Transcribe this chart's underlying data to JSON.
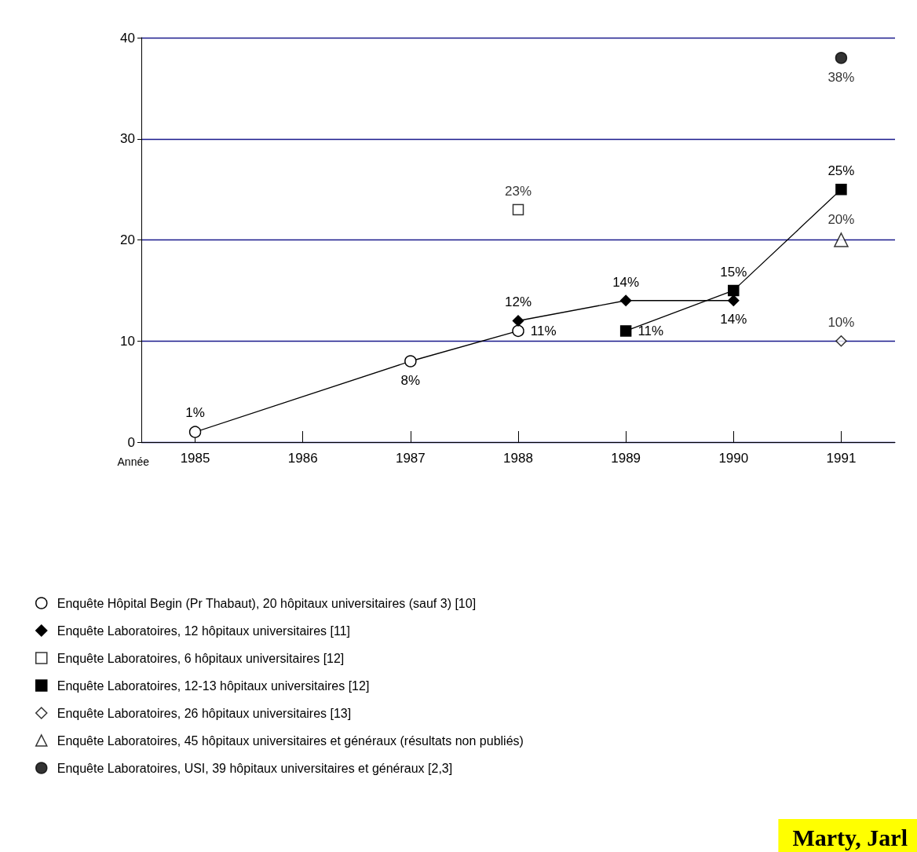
{
  "chart_data": {
    "type": "line",
    "xlabel": "Année",
    "categories": [
      "1985",
      "1986",
      "1987",
      "1988",
      "1989",
      "1990",
      "1991"
    ],
    "ylim": [
      0,
      40
    ],
    "yticks": [
      0,
      10,
      20,
      30,
      40
    ],
    "grid": "y",
    "legend": "bottom",
    "series": [
      {
        "name": "Enquête Hôpital Begin (Pr Thabaut), 20 hôpitaux universitaires (sauf 3) [10]",
        "type": "line",
        "color": "#ffffff",
        "marker": "circle",
        "values": [
          1,
          null,
          8,
          11,
          null,
          null,
          null
        ],
        "value_labels": [
          "1%",
          null,
          "8%",
          "11%",
          null,
          null,
          null
        ]
      },
      {
        "name": "Enquête Laboratoires, 12 hôpitaux universitaires [11]",
        "type": "line",
        "color": "#000000",
        "marker": "diamond",
        "values": [
          null,
          null,
          null,
          12,
          14,
          14,
          null
        ],
        "value_labels": [
          null,
          null,
          null,
          "12%",
          "14%",
          "14%",
          null
        ]
      },
      {
        "name": "Enquête Laboratoires, 6 hôpitaux universitaires [12]",
        "type": "scatter",
        "color": "#ffffff",
        "marker": "square",
        "values": [
          null,
          null,
          null,
          23,
          null,
          null,
          null
        ],
        "value_labels": [
          null,
          null,
          null,
          "23%",
          null,
          null,
          null
        ]
      },
      {
        "name": "Enquête Laboratoires, 12-13 hôpitaux universitaires [12]",
        "type": "line",
        "color": "#000000",
        "marker": "square",
        "values": [
          null,
          null,
          null,
          null,
          11,
          15,
          25
        ],
        "value_labels": [
          null,
          null,
          null,
          null,
          "11%",
          "15%",
          "25%"
        ]
      },
      {
        "name": "Enquête Laboratoires, 26 hôpitaux universitaires [13]",
        "type": "scatter",
        "color": "#ffffff",
        "marker": "diamond",
        "values": [
          null,
          null,
          null,
          null,
          null,
          null,
          10
        ],
        "value_labels": [
          null,
          null,
          null,
          null,
          null,
          null,
          "10%"
        ]
      },
      {
        "name": "Enquête Laboratoires, 45 hôpitaux universitaires et généraux (résultats non publiés)",
        "type": "scatter",
        "color": "#ffffff",
        "marker": "triangle",
        "values": [
          null,
          null,
          null,
          null,
          null,
          null,
          20
        ],
        "value_labels": [
          null,
          null,
          null,
          null,
          null,
          null,
          "20%"
        ]
      },
      {
        "name": "Enquête Laboratoires, USI, 39 hôpitaux universitaires et généraux [2,3]",
        "type": "scatter",
        "color": "#000000",
        "marker": "circle",
        "values": [
          null,
          null,
          null,
          null,
          null,
          null,
          38
        ],
        "value_labels": [
          null,
          null,
          null,
          null,
          null,
          null,
          "38%"
        ]
      }
    ],
    "annotations": [
      "Marty, Jarl"
    ]
  }
}
